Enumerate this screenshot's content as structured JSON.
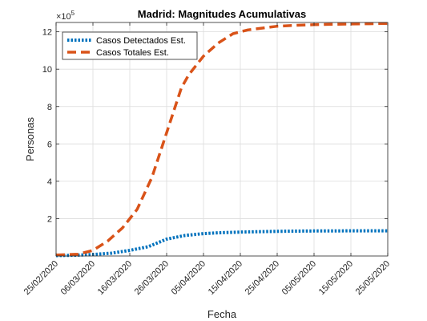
{
  "chart_data": {
    "type": "line",
    "title": "Madrid: Magnitudes Acumulativas",
    "xlabel": "Fecha",
    "ylabel": "Personas",
    "y_exponent_label": "×10",
    "y_exponent": "5",
    "x_tick_labels": [
      "25/02/2020",
      "06/03/2020",
      "16/03/2020",
      "26/03/2020",
      "05/04/2020",
      "15/04/2020",
      "25/04/2020",
      "05/05/2020",
      "15/05/2020",
      "25/05/2020"
    ],
    "x_days": [
      0,
      10,
      20,
      30,
      40,
      50,
      60,
      70,
      80,
      90
    ],
    "y_ticks": [
      2,
      4,
      6,
      8,
      10,
      12
    ],
    "xlim": [
      0,
      90
    ],
    "ylim": [
      0,
      12.5
    ],
    "grid": true,
    "legend_position": "top-left",
    "series": [
      {
        "name": "Casos Detectados Est.",
        "color": "#0072BD",
        "style": "dotted",
        "x": [
          0,
          5,
          10,
          15,
          20,
          25,
          30,
          35,
          40,
          45,
          50,
          55,
          60,
          65,
          70,
          75,
          80,
          85,
          90
        ],
        "y": [
          0.02,
          0.04,
          0.08,
          0.15,
          0.3,
          0.5,
          0.9,
          1.1,
          1.2,
          1.25,
          1.28,
          1.3,
          1.32,
          1.33,
          1.34,
          1.34,
          1.35,
          1.35,
          1.35
        ]
      },
      {
        "name": "Casos Totales Est.",
        "color": "#D95319",
        "style": "dashed",
        "x": [
          0,
          6,
          10,
          14,
          18,
          22,
          26,
          28,
          30,
          32,
          34,
          36,
          38,
          40,
          44,
          48,
          52,
          56,
          60,
          65,
          70,
          75,
          80,
          85,
          90
        ],
        "y": [
          0.05,
          0.1,
          0.3,
          0.8,
          1.5,
          2.5,
          4.2,
          5.4,
          6.6,
          7.8,
          9.0,
          9.7,
          10.2,
          10.7,
          11.4,
          11.9,
          12.1,
          12.2,
          12.3,
          12.35,
          12.38,
          12.4,
          12.42,
          12.43,
          12.45
        ]
      }
    ]
  }
}
